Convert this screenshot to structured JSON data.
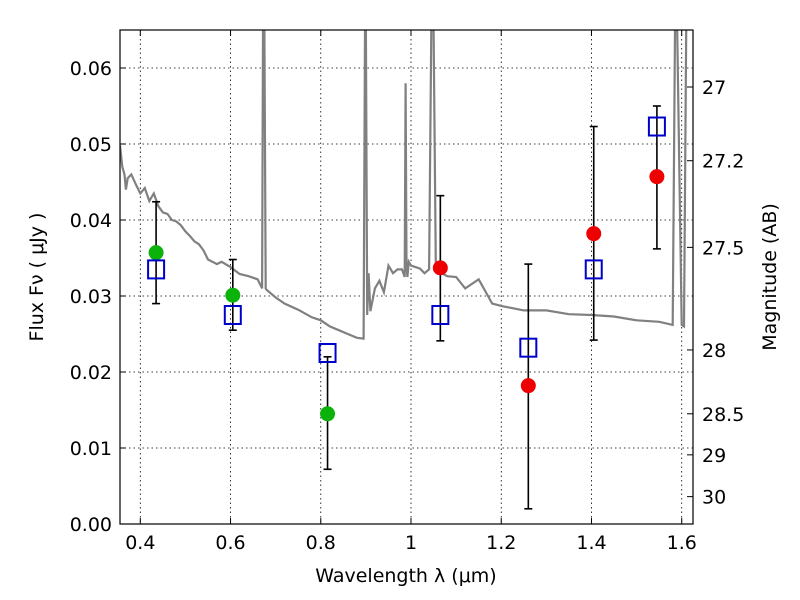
{
  "chart_data": {
    "type": "scatter",
    "title": "",
    "xlabel": "Wavelength  λ (μm)",
    "ylabel": "Flux  Fν  ( μJy )",
    "y2label": "Magnitude (AB)",
    "xlim": [
      0.355,
      1.625
    ],
    "ylim": [
      0.0,
      0.065
    ],
    "grid": true,
    "xticks": [
      0.4,
      0.6,
      0.8,
      1.0,
      1.2,
      1.4,
      1.6
    ],
    "xtick_labels": [
      "0.4",
      "0.6",
      "0.8",
      "1",
      "1.2",
      "1.4",
      "1.6"
    ],
    "yticks": [
      0.0,
      0.01,
      0.02,
      0.03,
      0.04,
      0.05,
      0.06
    ],
    "ytick_labels": [
      "0.00",
      "0.01",
      "0.02",
      "0.03",
      "0.04",
      "0.05",
      "0.06"
    ],
    "y2ticks": [
      {
        "flux": 0.0575,
        "label": "27"
      },
      {
        "flux": 0.0478,
        "label": "27.2"
      },
      {
        "flux": 0.0364,
        "label": "27.5"
      },
      {
        "flux": 0.0229,
        "label": "28"
      },
      {
        "flux": 0.0145,
        "label": "28.5"
      },
      {
        "flux": 0.0091,
        "label": "29"
      },
      {
        "flux": 0.0036,
        "label": "30"
      }
    ],
    "series": [
      {
        "kind": "filled-circle",
        "color": "#0ab20a",
        "x": [
          0.435,
          0.605,
          0.815
        ],
        "y": [
          0.0357,
          0.0301,
          0.0145
        ],
        "yerr_low": [
          0.029,
          0.0255,
          0.0072
        ],
        "yerr_high": [
          0.0424,
          0.0348,
          0.022
        ]
      },
      {
        "kind": "filled-circle",
        "color": "#ee0000",
        "x": [
          1.065,
          1.26,
          1.405,
          1.545
        ],
        "y": [
          0.0337,
          0.0182,
          0.0382,
          0.0457
        ],
        "yerr_low": [
          0.0241,
          0.002,
          0.0242,
          0.0362
        ],
        "yerr_high": [
          0.0432,
          0.0342,
          0.0523,
          0.055
        ]
      },
      {
        "kind": "open-square",
        "color": "#0000cc",
        "x": [
          0.435,
          0.605,
          0.815,
          1.065,
          1.26,
          1.405,
          1.545
        ],
        "y": [
          0.0335,
          0.0275,
          0.0225,
          0.0275,
          0.0232,
          0.0335,
          0.0523
        ]
      }
    ],
    "model_spectrum": {
      "color": "#808080",
      "x": [
        0.355,
        0.36,
        0.365,
        0.368,
        0.372,
        0.38,
        0.39,
        0.4,
        0.41,
        0.42,
        0.43,
        0.44,
        0.45,
        0.46,
        0.47,
        0.48,
        0.49,
        0.5,
        0.51,
        0.52,
        0.53,
        0.54,
        0.55,
        0.56,
        0.57,
        0.58,
        0.6,
        0.62,
        0.64,
        0.66,
        0.67,
        0.672,
        0.675,
        0.678,
        0.68,
        0.7,
        0.72,
        0.75,
        0.78,
        0.8,
        0.82,
        0.84,
        0.86,
        0.88,
        0.895,
        0.898,
        0.9,
        0.903,
        0.906,
        0.91,
        0.92,
        0.93,
        0.94,
        0.95,
        0.96,
        0.97,
        0.98,
        0.986,
        0.988,
        0.99,
        0.992,
        0.995,
        1.0,
        1.02,
        1.03,
        1.04,
        1.045,
        1.05,
        1.055,
        1.06,
        1.08,
        1.1,
        1.12,
        1.15,
        1.18,
        1.2,
        1.25,
        1.3,
        1.35,
        1.4,
        1.45,
        1.5,
        1.55,
        1.58,
        1.585,
        1.59,
        1.6,
        1.605,
        1.61
      ],
      "y": [
        0.0498,
        0.047,
        0.046,
        0.044,
        0.0455,
        0.046,
        0.0447,
        0.0435,
        0.0442,
        0.0425,
        0.0435,
        0.0418,
        0.041,
        0.0408,
        0.04,
        0.0398,
        0.0393,
        0.0385,
        0.0379,
        0.0372,
        0.0368,
        0.036,
        0.0348,
        0.0345,
        0.0342,
        0.0345,
        0.0338,
        0.0329,
        0.0326,
        0.0322,
        0.031,
        0.065,
        0.065,
        0.031,
        0.0308,
        0.0298,
        0.029,
        0.0282,
        0.0272,
        0.0268,
        0.026,
        0.0255,
        0.025,
        0.0245,
        0.0244,
        0.065,
        0.065,
        0.0275,
        0.033,
        0.028,
        0.031,
        0.032,
        0.0305,
        0.034,
        0.033,
        0.0335,
        0.0335,
        0.0325,
        0.058,
        0.034,
        0.0325,
        0.0345,
        0.034,
        0.0336,
        0.033,
        0.0335,
        0.065,
        0.065,
        0.034,
        0.0333,
        0.0326,
        0.0325,
        0.031,
        0.0322,
        0.029,
        0.0287,
        0.0281,
        0.0281,
        0.0276,
        0.0275,
        0.0273,
        0.0268,
        0.0266,
        0.0262,
        0.065,
        0.065,
        0.0262,
        0.026,
        0.065
      ]
    }
  }
}
